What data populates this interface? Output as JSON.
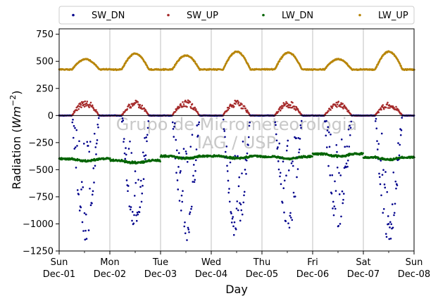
{
  "chart_data": {
    "type": "scatter",
    "title": "",
    "xlabel": "Day",
    "ylabel": "Radiation (Wm⁻²)",
    "ylabel_parts": {
      "prefix": "Radiation (",
      "unit_main": "Wm",
      "unit_exp": "−2",
      "suffix": ")"
    },
    "ylim": [
      -1250,
      800
    ],
    "yticks": [
      -1250,
      -1000,
      -750,
      -500,
      -250,
      0,
      250,
      500,
      750
    ],
    "xlim": [
      0,
      7
    ],
    "xticks": [
      {
        "day": 0,
        "weekday": "Sun",
        "date": "Dec-01"
      },
      {
        "day": 1,
        "weekday": "Mon",
        "date": "Dec-02"
      },
      {
        "day": 2,
        "weekday": "Tue",
        "date": "Dec-03"
      },
      {
        "day": 3,
        "weekday": "Wed",
        "date": "Dec-04"
      },
      {
        "day": 4,
        "weekday": "Thu",
        "date": "Dec-05"
      },
      {
        "day": 5,
        "weekday": "Fri",
        "date": "Dec-06"
      },
      {
        "day": 6,
        "weekday": "Sat",
        "date": "Dec-07"
      },
      {
        "day": 7,
        "weekday": "Sun",
        "date": "Dec-08"
      }
    ],
    "grid": "vertical",
    "zero_line": true,
    "legend_placement": "top, outside, 4 columns",
    "watermark": [
      "Grupo de Micrometeorologia",
      "IAG / USP"
    ],
    "daily": {
      "peak_hour_fraction": [
        0.52,
        0.5,
        0.5,
        0.5,
        0.52,
        0.5,
        0.5
      ],
      "SW_DN_min": [
        -1150,
        -1080,
        -1160,
        -1170,
        -1090,
        -1050,
        -1170
      ],
      "SW_UP_max": [
        150,
        140,
        145,
        140,
        135,
        130,
        125
      ],
      "LW_UP_max": [
        520,
        570,
        555,
        590,
        580,
        520,
        590
      ],
      "LW_DN_typical": [
        -400,
        -415,
        -375,
        -375,
        -380,
        -355,
        -385
      ]
    },
    "series": [
      {
        "name": "SW_DN",
        "color": "#00008b",
        "base": 0
      },
      {
        "name": "SW_UP",
        "color": "#a52a2a",
        "base": 0
      },
      {
        "name": "LW_DN",
        "color": "#006400",
        "base": -405
      },
      {
        "name": "LW_UP",
        "color": "#b8860b",
        "base": 425
      }
    ]
  }
}
